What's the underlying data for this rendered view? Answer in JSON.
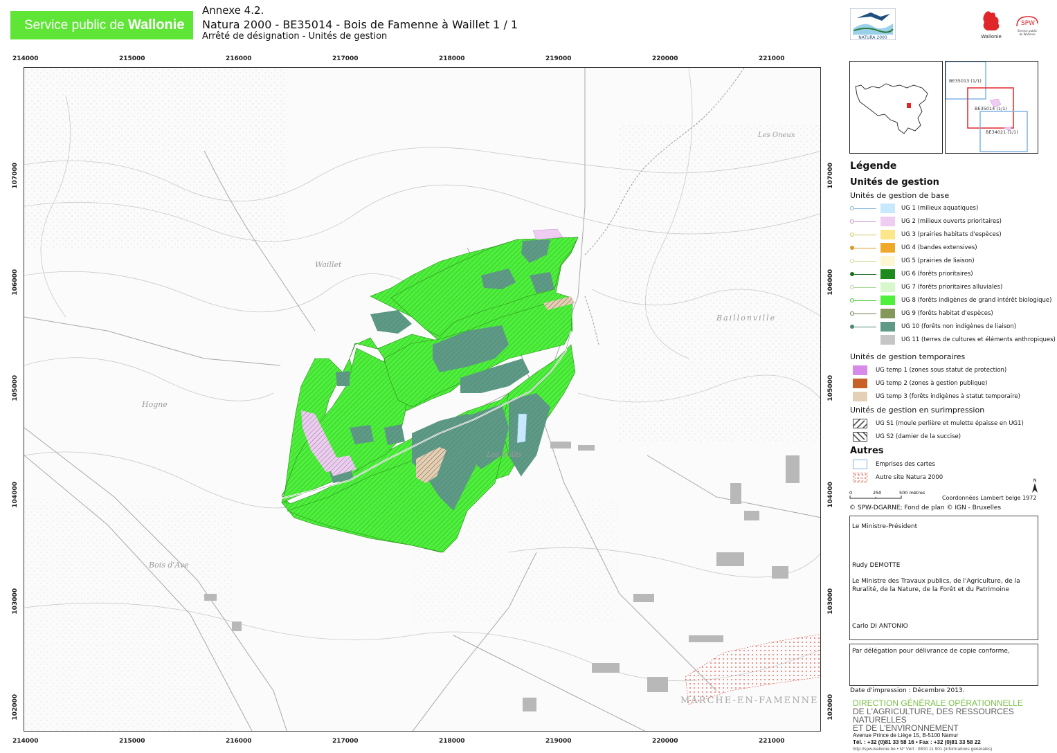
{
  "header": {
    "brand_prefix": "Service public de ",
    "brand_name": "Wallonie",
    "annex": "Annexe 4.2.",
    "site_title": "Natura 2000 - BE35014 - Bois de Famenne à Waillet  1 / 1",
    "subtitle": "Arrêté de désignation - Unités de gestion",
    "natura_logo_text": "NATURA 2000",
    "wallonie_logo_text": "Wallonie",
    "spw_logo_text": "SPW",
    "spw_logo_sub1": "Service public",
    "spw_logo_sub2": "de Wallonie"
  },
  "map": {
    "x_ticks": [
      "214000",
      "215000",
      "216000",
      "217000",
      "218000",
      "219000",
      "220000",
      "221000"
    ],
    "y_ticks": [
      "107000",
      "106000",
      "105000",
      "104000",
      "103000",
      "102000"
    ],
    "place_labels": [
      "Waillet",
      "Hogne",
      "Baillonville",
      "Les Brûlis",
      "MARCHE-EN-FAMENNE",
      "Bois d'Ave",
      "Les Oneux"
    ]
  },
  "insets": {
    "labels": [
      "BE35013 (1/1)",
      "BE35014 (1/1)",
      "BE34021 (1/1)"
    ]
  },
  "legend": {
    "title": "Légende",
    "section1": "Unités de gestion",
    "base_title": "Unités de gestion de base",
    "base_items": [
      {
        "label": "UG 1 (milieux aquatiques)",
        "color": "#c8e8fb",
        "line": "#7fb4d6"
      },
      {
        "label": "UG 2 (milieux ouverts prioritaires)",
        "color": "#efcdf3",
        "line": "#c48fcf"
      },
      {
        "label": "UG 3 (prairies habitats d'espèces)",
        "color": "#fbe78a",
        "line": "#cfc95a"
      },
      {
        "label": "UG 4 (bandes extensives)",
        "color": "#f0a82a",
        "line": "#d89a2b"
      },
      {
        "label": "UG 5 (prairies de liaison)",
        "color": "#fdf8d2",
        "line": "#d8d89a"
      },
      {
        "label": "UG 6 (forêts prioritaires)",
        "color": "#1e8a1e",
        "line": "#1e6a1e"
      },
      {
        "label": "UG 7 (forêts prioritaires alluviales)",
        "color": "#d8f8cc",
        "line": "#a8d89a"
      },
      {
        "label": "UG 8 (forêts indigènes de grand intérêt biologique)",
        "color": "#4ef03c",
        "line": "#3cc82c"
      },
      {
        "label": "UG 9 (forêts habitat d'espèces)",
        "color": "#84985a",
        "line": "#6a7e4a"
      },
      {
        "label": "UG 10 (forêts non indigènes de liaison)",
        "color": "#5e9a86",
        "line": "#4e8676"
      },
      {
        "label": "UG 11 (terres de cultures et éléments anthropiques)",
        "color": "#c6c6c6",
        "line": "#ffffff"
      }
    ],
    "temp_title": "Unités de gestion temporaires",
    "temp_items": [
      {
        "label": "UG temp 1 (zones sous statut de protection)",
        "color": "#d88ae8"
      },
      {
        "label": "UG temp 2 (zones à gestion publique)",
        "color": "#c8602a"
      },
      {
        "label": "UG temp 3 (forêts indigènes à statut temporaire)",
        "color": "#e3d0b6"
      }
    ],
    "over_title": "Unités de gestion en surimpression",
    "over_items": [
      {
        "label": "UG S1 (moule perlière et mulette épaisse en UG1)"
      },
      {
        "label": "UG S2 (damier de la succise)"
      }
    ],
    "other_title": "Autres",
    "other_items": [
      {
        "label": "Emprises des cartes",
        "color": "#7fb4e6"
      },
      {
        "label": "Autre site Natura 2000",
        "color": "#e04a3a"
      }
    ]
  },
  "scale": {
    "north": "N",
    "marks": [
      "0",
      "250",
      "500 mètres"
    ],
    "projection": "Coordonnées Lambert belge 1972",
    "copyright": "© SPW-DGARNE; Fond de plan © IGN - Bruxelles"
  },
  "signatures": {
    "role1": "Le Ministre-Président",
    "name1": "Rudy DEMOTTE",
    "role2": "Le Ministre des Travaux publics, de l'Agriculture, de la Ruralité, de la Nature, de la Forêt et du Patrimoine",
    "name2": "Carlo DI ANTONIO",
    "delegation": "Par délégation pour délivrance de copie conforme,"
  },
  "footer": {
    "print_date": "Date d'impression : Décembre 2013.",
    "dgo_line1": "DIRECTION GÉNÉRALE OPÉRATIONNELLE",
    "dgo_line2": "DE L'AGRICULTURE, DES RESSOURCES NATURELLES",
    "dgo_line3": "ET DE L'ENVIRONNEMENT",
    "address": "Avenue Prince de Liège 15, B-5100 Namur",
    "phone": "Tél. : +32 (0)81 33 58 16 • Fax : +32 (0)81 33 58 22",
    "url": "http://spw.wallonie.be • N° Vert : 0800 11 901 (informations générales)"
  },
  "colors": {
    "brand_green": "#5fe536",
    "forest_green": "#4ef03c",
    "forest_dark": "#5e9a86",
    "site_outline": "#e04a3a"
  }
}
